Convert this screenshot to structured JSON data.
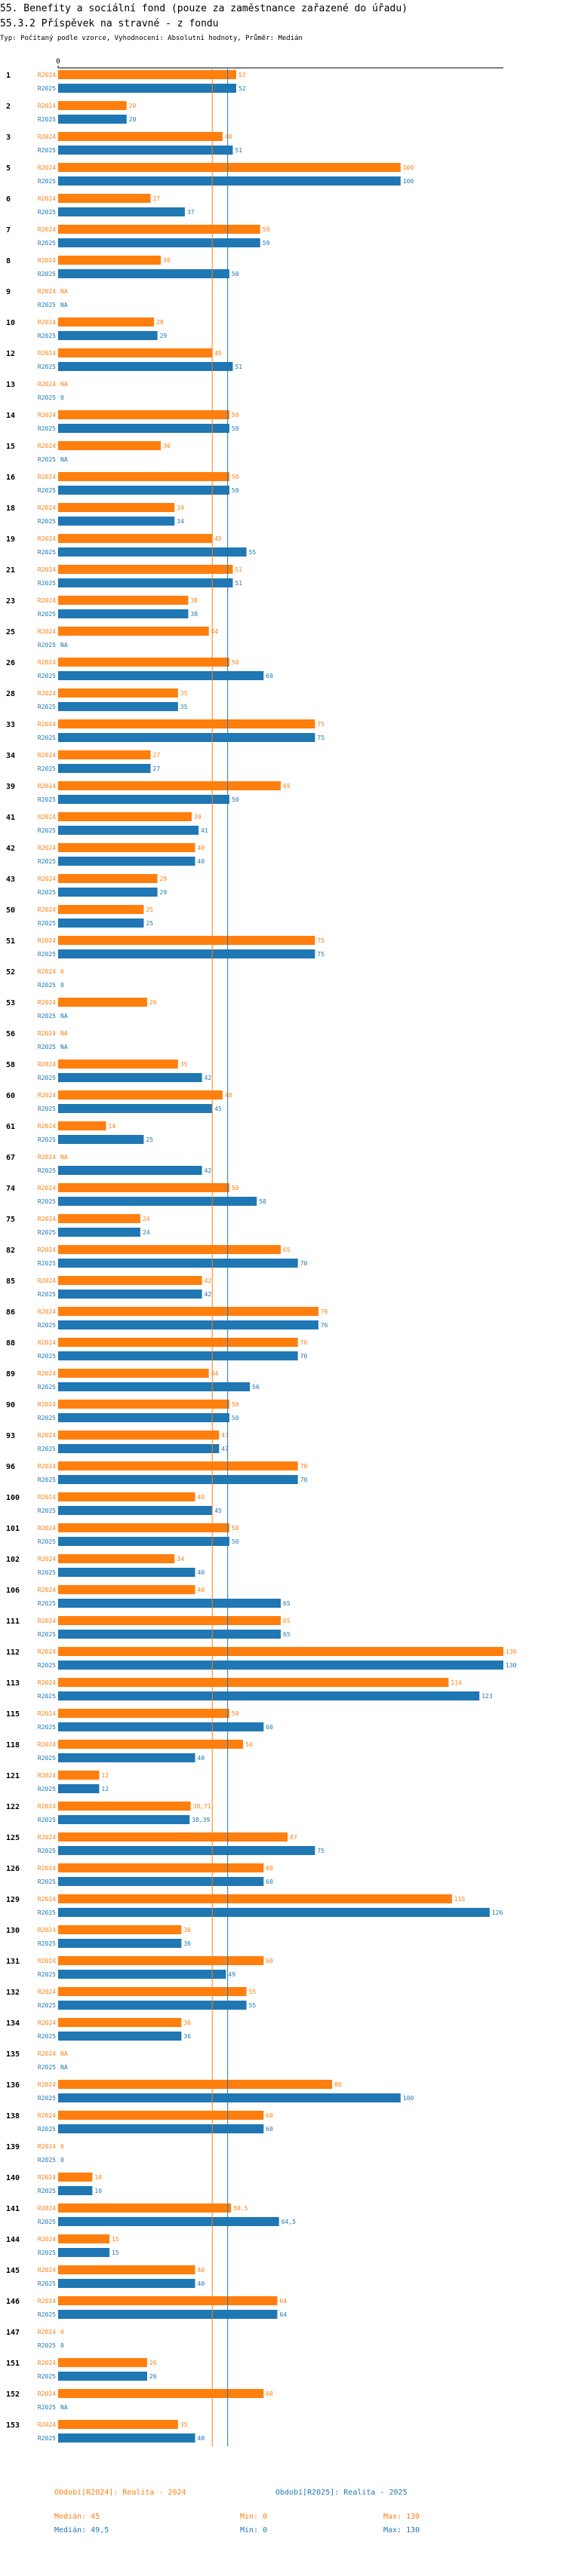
{
  "header": {
    "title": "55. Benefity a sociální fond (pouze za zaměstnance zařazené do úřadu)",
    "subtitle": "55.3.2 Příspěvek na stravné - z fondu",
    "type_line": "Typ: Počítaný podle vzorce, Vyhodnocení: Absolutní hodnoty, Průměr: Medián"
  },
  "colors": {
    "y2024": "#ff7f0e",
    "y2025": "#1f77b4",
    "text": "#000000",
    "axis": "#000000"
  },
  "chart_data": {
    "type": "bar",
    "orientation": "horizontal",
    "title": "55.3.2 Příspěvek na stravné - z fondu",
    "xlim": [
      0,
      130
    ],
    "x_tick_labels": [
      "0"
    ],
    "series_labels": [
      "R2024",
      "R2025"
    ],
    "na_label": "NA",
    "categories": [
      "1",
      "2",
      "3",
      "5",
      "6",
      "7",
      "8",
      "9",
      "10",
      "12",
      "13",
      "14",
      "15",
      "16",
      "18",
      "19",
      "21",
      "23",
      "25",
      "26",
      "28",
      "33",
      "34",
      "39",
      "41",
      "42",
      "43",
      "50",
      "51",
      "52",
      "53",
      "56",
      "58",
      "60",
      "61",
      "67",
      "74",
      "75",
      "82",
      "85",
      "86",
      "88",
      "89",
      "90",
      "93",
      "96",
      "100",
      "101",
      "102",
      "106",
      "111",
      "112",
      "113",
      "115",
      "118",
      "121",
      "122",
      "125",
      "126",
      "129",
      "130",
      "131",
      "132",
      "134",
      "135",
      "136",
      "138",
      "139",
      "140",
      "141",
      "144",
      "145",
      "146",
      "147",
      "151",
      "152",
      "153"
    ],
    "series": [
      {
        "name": "R2024",
        "values": [
          52,
          20,
          48,
          100,
          27,
          59,
          30,
          null,
          28,
          45,
          null,
          50,
          30,
          50,
          34,
          45,
          51,
          38,
          44,
          50,
          35,
          75,
          27,
          65,
          39,
          40,
          29,
          25,
          75,
          0,
          26,
          null,
          35,
          48,
          14,
          null,
          50,
          24,
          65,
          42,
          76,
          70,
          44,
          50,
          47,
          70,
          40,
          50,
          34,
          40,
          65,
          130,
          114,
          50,
          54,
          12,
          38.71,
          67,
          60,
          115,
          36,
          60,
          55,
          36,
          null,
          80,
          60,
          0,
          10,
          50.5,
          15,
          40,
          64,
          0,
          26,
          60,
          35
        ],
        "display": [
          "52",
          "20",
          "48",
          "100",
          "27",
          "59",
          "30",
          "NA",
          "28",
          "45",
          "NA",
          "50",
          "30",
          "50",
          "34",
          "45",
          "51",
          "38",
          "44",
          "50",
          "35",
          "75",
          "27",
          "65",
          "39",
          "40",
          "29",
          "25",
          "75",
          "0",
          "26",
          "NA",
          "35",
          "48",
          "14",
          "NA",
          "50",
          "24",
          "65",
          "42",
          "76",
          "70",
          "44",
          "50",
          "47",
          "70",
          "40",
          "50",
          "34",
          "40",
          "65",
          "130",
          "114",
          "50",
          "54",
          "12",
          "38,71",
          "67",
          "60",
          "115",
          "36",
          "60",
          "55",
          "36",
          "NA",
          "80",
          "60",
          "0",
          "10",
          "50,5",
          "15",
          "40",
          "64",
          "0",
          "26",
          "60",
          "35"
        ]
      },
      {
        "name": "R2025",
        "values": [
          52,
          20,
          51,
          100,
          37,
          59,
          50,
          null,
          29,
          51,
          0,
          50,
          null,
          50,
          34,
          55,
          51,
          38,
          null,
          60,
          35,
          75,
          27,
          50,
          41,
          40,
          29,
          25,
          75,
          0,
          null,
          null,
          42,
          45,
          25,
          42,
          58,
          24,
          70,
          42,
          76,
          70,
          56,
          50,
          47,
          70,
          45,
          50,
          40,
          65,
          65,
          130,
          123,
          60,
          40,
          12,
          38.39,
          75,
          60,
          126,
          36,
          49,
          55,
          36,
          null,
          100,
          60,
          0,
          10,
          64.5,
          15,
          40,
          64,
          0,
          26,
          null,
          40
        ],
        "display": [
          "52",
          "20",
          "51",
          "100",
          "37",
          "59",
          "50",
          "NA",
          "29",
          "51",
          "0",
          "50",
          "NA",
          "50",
          "34",
          "55",
          "51",
          "38",
          "NA",
          "60",
          "35",
          "75",
          "27",
          "50",
          "41",
          "40",
          "29",
          "25",
          "75",
          "0",
          "NA",
          "NA",
          "42",
          "45",
          "25",
          "42",
          "58",
          "24",
          "70",
          "42",
          "76",
          "70",
          "56",
          "50",
          "47",
          "70",
          "45",
          "50",
          "40",
          "65",
          "65",
          "130",
          "123",
          "60",
          "40",
          "12",
          "38,39",
          "75",
          "60",
          "126",
          "36",
          "49",
          "55",
          "36",
          "NA",
          "100",
          "60",
          "0",
          "10",
          "64,5",
          "15",
          "40",
          "64",
          "0",
          "26",
          "NA",
          "40"
        ]
      }
    ],
    "reference_lines": {
      "median_2024": 45,
      "median_2025": 49.5
    }
  },
  "legend": {
    "y2024": {
      "label": "Období[R2024]: Realita - 2024",
      "median": "Medián: 45",
      "min": "Min: 0",
      "max": "Max: 130"
    },
    "y2025": {
      "label": "Období[R2025]: Realita - 2025",
      "median": "Medián: 49,5",
      "min": "Min: 0",
      "max": "Max: 130"
    }
  }
}
